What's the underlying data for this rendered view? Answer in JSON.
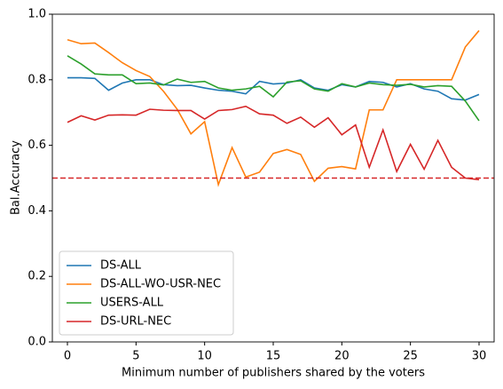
{
  "chart_data": {
    "type": "line",
    "xlabel": "Minimum number of publishers shared by the voters",
    "ylabel": "Bal.Accuracy",
    "x": [
      0,
      1,
      2,
      3,
      4,
      5,
      6,
      7,
      8,
      9,
      10,
      11,
      12,
      13,
      14,
      15,
      16,
      17,
      18,
      19,
      20,
      21,
      22,
      23,
      24,
      25,
      26,
      27,
      28,
      29,
      30
    ],
    "series": [
      {
        "name": "DS-ALL",
        "color": "#1f77b4",
        "values": [
          0.806,
          0.806,
          0.804,
          0.768,
          0.79,
          0.8,
          0.8,
          0.785,
          0.782,
          0.783,
          0.775,
          0.768,
          0.765,
          0.757,
          0.795,
          0.787,
          0.79,
          0.8,
          0.775,
          0.768,
          0.785,
          0.778,
          0.795,
          0.792,
          0.778,
          0.788,
          0.772,
          0.765,
          0.742,
          0.738,
          0.755
        ]
      },
      {
        "name": "DS-ALL-WO-USR-NEC",
        "color": "#ff7f0e",
        "values": [
          0.922,
          0.91,
          0.912,
          0.883,
          0.852,
          0.828,
          0.81,
          0.765,
          0.71,
          0.635,
          0.672,
          0.48,
          0.593,
          0.503,
          0.518,
          0.575,
          0.587,
          0.572,
          0.49,
          0.53,
          0.535,
          0.528,
          0.708,
          0.708,
          0.8,
          0.8,
          0.8,
          0.8,
          0.8,
          0.9,
          0.95
        ]
      },
      {
        "name": "USERS-ALL",
        "color": "#2ca02c",
        "values": [
          0.873,
          0.848,
          0.818,
          0.815,
          0.815,
          0.788,
          0.79,
          0.784,
          0.802,
          0.792,
          0.795,
          0.775,
          0.768,
          0.772,
          0.78,
          0.748,
          0.793,
          0.797,
          0.772,
          0.765,
          0.788,
          0.778,
          0.79,
          0.785,
          0.783,
          0.786,
          0.778,
          0.782,
          0.78,
          0.735,
          0.675
        ]
      },
      {
        "name": "DS-URL-NEC",
        "color": "#d62728",
        "values": [
          0.67,
          0.69,
          0.677,
          0.692,
          0.693,
          0.692,
          0.71,
          0.707,
          0.706,
          0.706,
          0.68,
          0.706,
          0.709,
          0.719,
          0.696,
          0.692,
          0.667,
          0.686,
          0.655,
          0.684,
          0.632,
          0.662,
          0.533,
          0.647,
          0.52,
          0.603,
          0.527,
          0.615,
          0.533,
          0.5,
          0.495
        ]
      }
    ],
    "hline": {
      "y": 0.5,
      "color": "#d62728",
      "style": "dashed"
    },
    "xlim": [
      -1.1,
      31.1
    ],
    "ylim": [
      0,
      1
    ],
    "xticks": [
      0,
      5,
      10,
      15,
      20,
      25,
      30
    ],
    "yticks": [
      {
        "value": 0,
        "label": "0.0"
      },
      0.2,
      0.4,
      0.6,
      0.8,
      {
        "value": 1,
        "label": "1.0"
      }
    ],
    "legend": "lower left"
  }
}
